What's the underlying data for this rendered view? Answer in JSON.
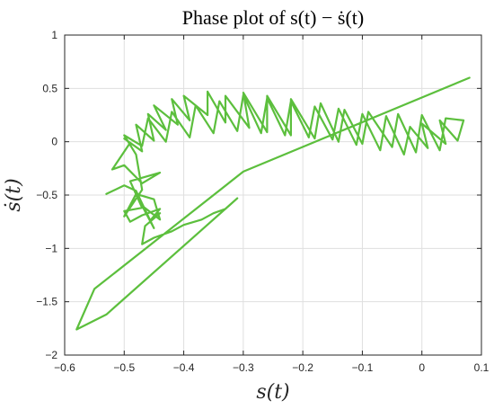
{
  "chart_data": {
    "type": "line",
    "title": "Phase plot of s(t) − ṡ(t)",
    "xlabel": "s(t)",
    "ylabel": "ṡ(t)",
    "xlim": [
      -0.6,
      0.1
    ],
    "ylim": [
      -2,
      1
    ],
    "xticks": [
      "−0.6",
      "−0.5",
      "−0.4",
      "−0.3",
      "−0.2",
      "−0.1",
      "0",
      "0.1"
    ],
    "yticks": [
      "−2",
      "−1.5",
      "−1",
      "−0.5",
      "0",
      "0.5",
      "1"
    ],
    "grid": true,
    "legend": "none",
    "line_color": "#5cbf3d",
    "series": [
      {
        "x": [
          0.08,
          -0.3,
          -0.55,
          -0.58,
          -0.53,
          -0.31,
          -0.33,
          -0.35,
          -0.37,
          -0.4,
          -0.42,
          -0.45,
          -0.47,
          -0.465,
          -0.44,
          -0.455,
          -0.44,
          -0.47,
          -0.49,
          -0.5,
          -0.47,
          -0.49,
          -0.44,
          -0.47,
          -0.5,
          -0.52,
          -0.49,
          -0.5,
          -0.47,
          -0.48,
          -0.45,
          -0.46,
          -0.43,
          -0.45,
          -0.41,
          -0.42,
          -0.39,
          -0.4,
          -0.36,
          -0.36,
          -0.33,
          -0.33,
          -0.29,
          -0.3,
          -0.26,
          -0.26,
          -0.22,
          -0.22,
          -0.18,
          -0.17,
          -0.14,
          -0.13,
          -0.1,
          -0.09,
          -0.05,
          -0.04,
          -0.01,
          0.0,
          0.03,
          0.04,
          0.07,
          0.06,
          0.03,
          0.04,
          0.0,
          0.01,
          -0.02,
          -0.03,
          -0.06,
          -0.07,
          -0.1,
          -0.11,
          -0.14,
          -0.15,
          -0.18,
          -0.19,
          -0.22,
          -0.23,
          -0.26,
          -0.27,
          -0.3,
          -0.31,
          -0.34,
          -0.35,
          -0.38,
          -0.39,
          -0.42,
          -0.43,
          -0.46,
          -0.47,
          -0.5,
          -0.48,
          -0.47,
          -0.5,
          -0.48,
          -0.45,
          -0.44,
          -0.47,
          -0.45,
          -0.48,
          -0.5,
          -0.53
        ],
        "y": [
          0.6,
          -0.28,
          -1.38,
          -1.76,
          -1.62,
          -0.53,
          -0.63,
          -0.67,
          -0.73,
          -0.78,
          -0.84,
          -0.9,
          -0.96,
          -0.79,
          -0.67,
          -0.73,
          -0.63,
          -0.69,
          -0.75,
          -0.65,
          -0.62,
          -0.37,
          -0.29,
          -0.39,
          -0.22,
          -0.26,
          -0.01,
          0.03,
          -0.09,
          0.16,
          0.01,
          0.26,
          0.11,
          0.34,
          0.16,
          0.4,
          0.2,
          0.43,
          0.25,
          0.47,
          0.18,
          0.43,
          0.13,
          0.46,
          0.09,
          0.43,
          0.06,
          0.4,
          0.03,
          0.36,
          0.0,
          0.3,
          -0.02,
          0.28,
          -0.05,
          0.26,
          -0.1,
          0.25,
          -0.08,
          0.22,
          0.2,
          0.01,
          0.2,
          -0.02,
          0.17,
          -0.06,
          0.14,
          -0.12,
          0.24,
          -0.08,
          0.26,
          -0.03,
          0.31,
          0.02,
          0.33,
          0.04,
          0.38,
          0.06,
          0.41,
          0.08,
          0.44,
          0.1,
          0.38,
          0.08,
          0.34,
          0.04,
          0.28,
          0.0,
          0.22,
          -0.04,
          0.06,
          -0.12,
          -0.45,
          -0.7,
          -0.49,
          -0.54,
          -0.73,
          -0.6,
          -0.81,
          -0.46,
          -0.41,
          -0.49
        ]
      }
    ]
  }
}
